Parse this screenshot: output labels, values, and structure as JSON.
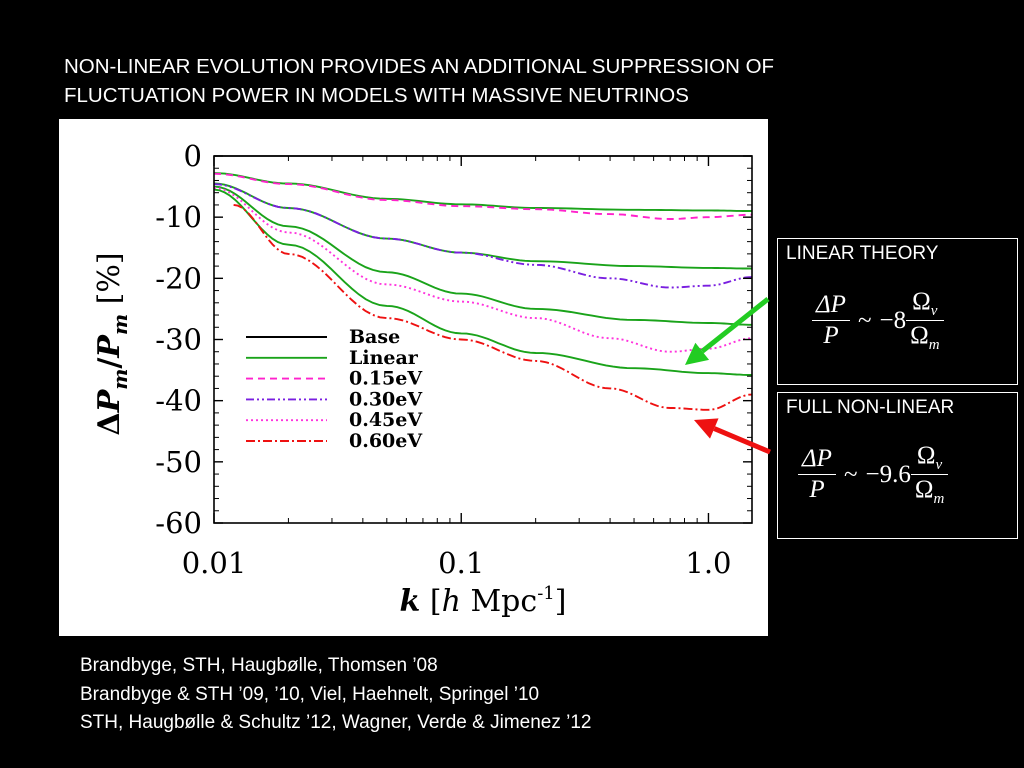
{
  "slide": {
    "title_line1": "NON-LINEAR EVOLUTION PROVIDES AN ADDITIONAL SUPPRESSION OF",
    "title_line2": "FLUCTUATION POWER IN MODELS WITH MASSIVE NEUTRINOS",
    "references": [
      "Brandbyge, STH, Haugbølle, Thomsen ’08",
      "Brandbyge & STH ’09, ’10,  Viel, Haehnelt, Springel ’10",
      "STH, Haugbølle & Schultz ’12, Wagner, Verde & Jimenez ’12"
    ]
  },
  "linear_box": {
    "label": "LINEAR THEORY",
    "coefficient": "−8",
    "arrow_color": "#22cc22"
  },
  "nonlinear_box": {
    "label": "FULL NON-LINEAR",
    "coefficient": "−9.6",
    "arrow_color": "#ee1111"
  },
  "formula": {
    "num": "ΔP",
    "den": "P",
    "approx": "~",
    "omega_num": "Ω",
    "omega_num_sub": "ν",
    "omega_den": "Ω",
    "omega_den_sub": "m"
  },
  "chart_data": {
    "type": "line",
    "xscale": "log",
    "xlim": [
      0.01,
      1.5
    ],
    "ylim": [
      -60,
      0
    ],
    "xticks": [
      0.01,
      0.1,
      1.0
    ],
    "xtick_labels": [
      "0.01",
      "0.1",
      "1.0"
    ],
    "yticks": [
      0,
      -10,
      -20,
      -30,
      -40,
      -50,
      -60
    ],
    "ytick_labels": [
      "0",
      "-10",
      "-20",
      "-30",
      "-40",
      "-50",
      "-60"
    ],
    "xlabel_main": "k",
    "xlabel_unit_h": "h",
    "xlabel_unit_mpc": "Mpc",
    "xlabel_unit_exp": "-1",
    "ylabel_delta": "Δ",
    "ylabel_p": "P",
    "ylabel_sub": "m",
    "ylabel_unit": "[%]",
    "legend_position": "center-left",
    "series": [
      {
        "name": "Base",
        "color": "#000000",
        "dash": "",
        "x": [
          0.01,
          1.5
        ],
        "y": [
          0,
          0
        ]
      },
      {
        "name": "Linear",
        "color": "#1aa31a",
        "dash": "",
        "curves": [
          {
            "x": [
              0.01,
              0.02,
              0.05,
              0.1,
              0.2,
              0.5,
              1.0,
              1.5
            ],
            "y": [
              -2.8,
              -4.5,
              -7.0,
              -7.9,
              -8.5,
              -8.8,
              -8.9,
              -9.0
            ]
          },
          {
            "x": [
              0.01,
              0.02,
              0.05,
              0.1,
              0.2,
              0.5,
              1.0,
              1.5
            ],
            "y": [
              -4.5,
              -8.5,
              -13.5,
              -15.8,
              -17.2,
              -18.0,
              -18.3,
              -18.4
            ]
          },
          {
            "x": [
              0.01,
              0.02,
              0.05,
              0.1,
              0.2,
              0.5,
              1.0,
              1.5
            ],
            "y": [
              -5.0,
              -11.5,
              -19.0,
              -22.5,
              -25.0,
              -26.8,
              -27.3,
              -27.6
            ]
          },
          {
            "x": [
              0.01,
              0.02,
              0.05,
              0.1,
              0.2,
              0.5,
              1.0,
              1.5
            ],
            "y": [
              -5.5,
              -14.5,
              -24.5,
              -29.0,
              -32.2,
              -34.7,
              -35.5,
              -35.8
            ]
          }
        ]
      },
      {
        "name": "0.15eV",
        "color": "#ff22cc",
        "dash": "7,5",
        "x": [
          0.01,
          0.02,
          0.05,
          0.1,
          0.2,
          0.4,
          0.7,
          1.0,
          1.5
        ],
        "y": [
          -2.9,
          -4.6,
          -7.2,
          -8.2,
          -8.7,
          -9.5,
          -10.3,
          -10.0,
          -9.6
        ]
      },
      {
        "name": "0.30eV",
        "color": "#7a1fe0",
        "dash": "8,3,2,3,2,3",
        "x": [
          0.01,
          0.02,
          0.05,
          0.1,
          0.2,
          0.4,
          0.7,
          1.0,
          1.5
        ],
        "y": [
          -4.6,
          -8.5,
          -13.5,
          -15.8,
          -17.8,
          -20.0,
          -21.5,
          -21.2,
          -19.8
        ]
      },
      {
        "name": "0.45eV",
        "color": "#ff33dd",
        "dash": "2,3",
        "x": [
          0.01,
          0.02,
          0.05,
          0.1,
          0.2,
          0.4,
          0.7,
          1.0,
          1.5
        ],
        "y": [
          -5.2,
          -12.5,
          -21.0,
          -23.8,
          -26.5,
          -29.8,
          -32.0,
          -31.5,
          -29.8
        ]
      },
      {
        "name": "0.60eV",
        "color": "#ee1111",
        "dash": "9,3,2,3",
        "x": [
          0.012,
          0.02,
          0.05,
          0.1,
          0.2,
          0.4,
          0.7,
          1.0,
          1.5
        ],
        "y": [
          -8.0,
          -16.0,
          -26.5,
          -30.0,
          -33.5,
          -38.0,
          -41.2,
          -41.5,
          -39.0
        ]
      }
    ]
  }
}
